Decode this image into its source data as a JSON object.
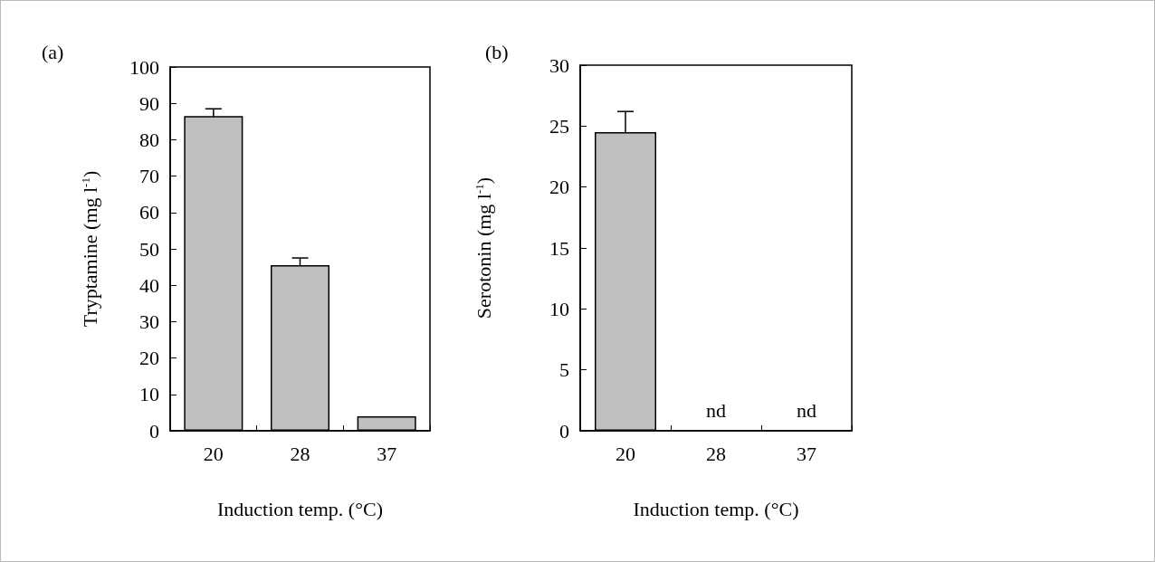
{
  "chart_data": [
    {
      "type": "bar",
      "title": "(a)",
      "xlabel": "Induction temp. (°C)",
      "ylabel": "Tryptamine (mg l$^{-1}$)",
      "categories": [
        "20",
        "28",
        "37"
      ],
      "values": [
        86.5,
        45.5,
        4
      ],
      "errors": [
        2,
        2,
        null
      ],
      "color": "#c0c0c0",
      "ylim": [
        0,
        100
      ],
      "yticks": [
        0,
        10,
        20,
        30,
        40,
        50,
        60,
        70,
        80,
        90,
        100
      ]
    },
    {
      "type": "bar",
      "title": "(b)",
      "xlabel": "Induction temp. (°C)",
      "ylabel": "Serotonin (mg l$^{-1}$)",
      "categories": [
        "20",
        "28",
        "37"
      ],
      "values": [
        24.5,
        null,
        null
      ],
      "errors": [
        1.7,
        null,
        null
      ],
      "color": "#c0c0c0",
      "ylim": [
        0,
        30
      ],
      "yticks": [
        0,
        5,
        10,
        15,
        20,
        25,
        30
      ],
      "annotations": [
        "nd",
        "nd"
      ]
    }
  ]
}
